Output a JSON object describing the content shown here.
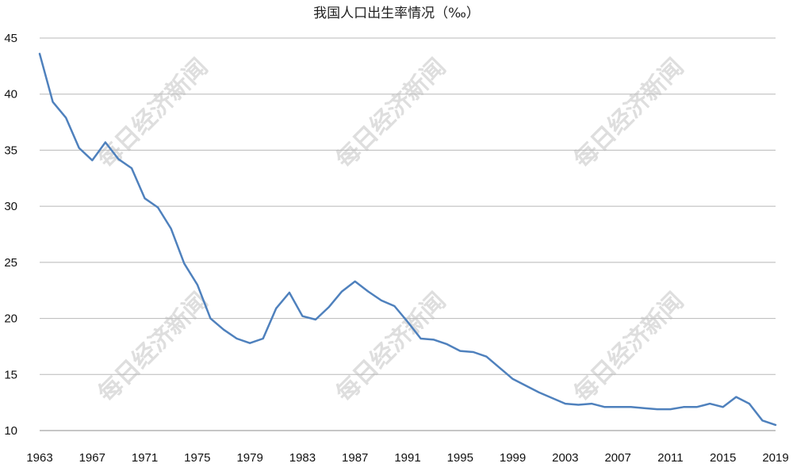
{
  "chart_data": {
    "type": "line",
    "title": "我国人口出生率情况（‰）",
    "xlabel": "",
    "ylabel": "",
    "ylim": [
      10,
      45
    ],
    "yticks": [
      10,
      15,
      20,
      25,
      30,
      35,
      40,
      45
    ],
    "xlim": [
      1963,
      2019
    ],
    "xticks": [
      1963,
      1967,
      1971,
      1975,
      1979,
      1983,
      1987,
      1991,
      1995,
      1999,
      2003,
      2007,
      2011,
      2015,
      2019
    ],
    "grid": true,
    "legend": "none",
    "line_color": "#4f81bd",
    "watermark": "每日经济新闻",
    "series": [
      {
        "x": [
          1963,
          1964,
          1965,
          1966,
          1967,
          1968,
          1969,
          1970,
          1971,
          1972,
          1973,
          1974,
          1975,
          1976,
          1977,
          1978,
          1979,
          1980,
          1981,
          1982,
          1983,
          1984,
          1985,
          1986,
          1987,
          1988,
          1989,
          1990,
          1991,
          1992,
          1993,
          1994,
          1995,
          1996,
          1997,
          1998,
          1999,
          2000,
          2001,
          2002,
          2003,
          2004,
          2005,
          2006,
          2007,
          2008,
          2009,
          2010,
          2011,
          2012,
          2013,
          2014,
          2015,
          2016,
          2017,
          2018,
          2019
        ],
        "values": [
          43.6,
          39.3,
          37.9,
          35.2,
          34.1,
          35.7,
          34.2,
          33.4,
          30.7,
          29.9,
          28.0,
          24.9,
          23.0,
          20.0,
          19.0,
          18.2,
          17.8,
          18.2,
          20.9,
          22.3,
          20.2,
          19.9,
          21.0,
          22.4,
          23.3,
          22.4,
          21.6,
          21.1,
          19.7,
          18.2,
          18.1,
          17.7,
          17.1,
          17.0,
          16.6,
          15.6,
          14.6,
          14.0,
          13.4,
          12.9,
          12.4,
          12.3,
          12.4,
          12.1,
          12.1,
          12.1,
          12.0,
          11.9,
          11.9,
          12.1,
          12.1,
          12.4,
          12.1,
          13.0,
          12.4,
          10.9,
          10.5
        ]
      }
    ]
  }
}
